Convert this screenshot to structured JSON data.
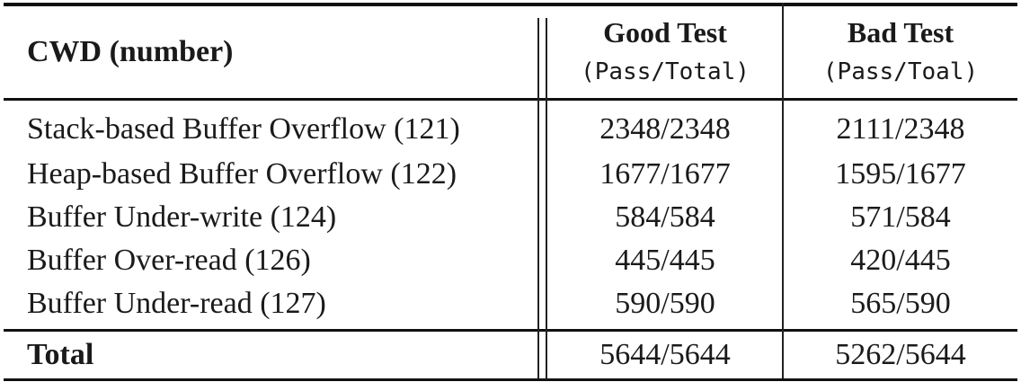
{
  "table": {
    "header": {
      "col0": "CWD (number)",
      "col1_title": "Good Test",
      "col1_sub": "(Pass/Total)",
      "col2_title": "Bad Test",
      "col2_sub": "(Pass/Toal)"
    },
    "rows": [
      {
        "name": "Stack-based Buffer Overflow (121)",
        "good": "2348/2348",
        "bad": "2111/2348"
      },
      {
        "name": "Heap-based Buffer Overflow (122)",
        "good": "1677/1677",
        "bad": "1595/1677"
      },
      {
        "name": "Buffer Under-write (124)",
        "good": "584/584",
        "bad": "571/584"
      },
      {
        "name": "Buffer Over-read (126)",
        "good": "445/445",
        "bad": "420/445"
      },
      {
        "name": "Buffer Under-read (127)",
        "good": "590/590",
        "bad": "565/590"
      }
    ],
    "total": {
      "name": "Total",
      "good": "5644/5644",
      "bad": "5262/5644"
    }
  }
}
